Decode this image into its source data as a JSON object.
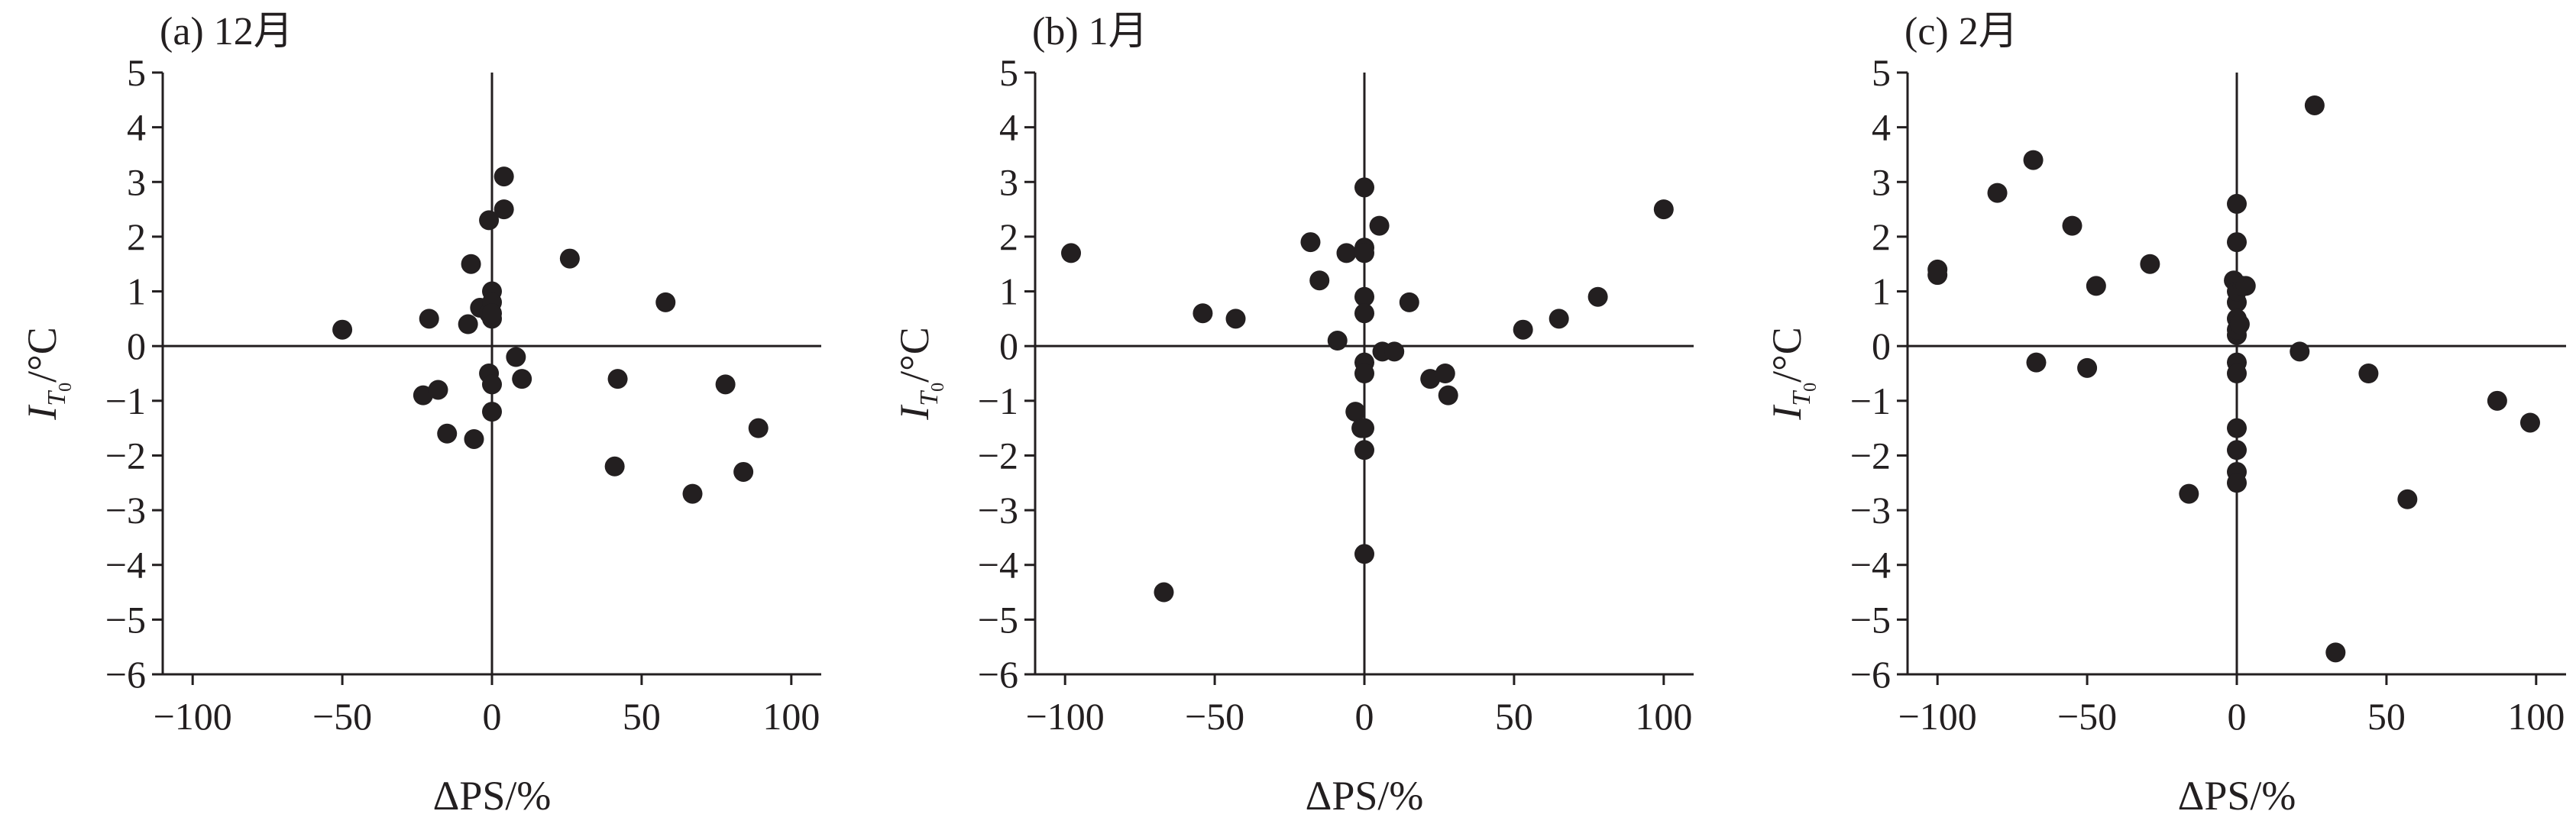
{
  "chart_data": [
    {
      "type": "scatter",
      "title": "(a) 12月",
      "xlabel": "ΔPS/%",
      "ylabel_main": "I",
      "ylabel_sub": "T",
      "ylabel_subsub": "0",
      "ylabel_unit": "/°C",
      "xlim": [
        -110,
        110
      ],
      "ylim": [
        -6,
        5
      ],
      "xticks": [
        "−100",
        "−50",
        "0",
        "50",
        "100"
      ],
      "yticks": [
        "5",
        "4",
        "3",
        "2",
        "1",
        "0",
        "−1",
        "−2",
        "−3",
        "−4",
        "−5",
        "−6"
      ],
      "x": [
        -50,
        -23,
        -21,
        -18,
        -15,
        -8,
        -7,
        -6,
        -4,
        -1,
        -1,
        0,
        0,
        0,
        0,
        0,
        4,
        4,
        8,
        10,
        26,
        41,
        42,
        58,
        78,
        84,
        67,
        89,
        -1,
        0
      ],
      "y": [
        0.3,
        -0.9,
        0.5,
        -0.8,
        -1.6,
        0.4,
        1.5,
        -1.7,
        0.7,
        -0.5,
        0.6,
        1.0,
        0.8,
        0.5,
        -0.7,
        -1.2,
        3.1,
        2.5,
        -0.2,
        -0.6,
        1.6,
        -2.2,
        -0.6,
        0.8,
        -0.7,
        -2.3,
        -2.7,
        -1.5,
        2.3,
        0.6
      ]
    },
    {
      "type": "scatter",
      "title": "(b) 1月",
      "xlabel": "ΔPS/%",
      "ylabel_main": "I",
      "ylabel_sub": "T",
      "ylabel_subsub": "0",
      "ylabel_unit": "/°C",
      "xlim": [
        -110,
        110
      ],
      "ylim": [
        -6,
        5
      ],
      "xticks": [
        "−100",
        "−50",
        "0",
        "50",
        "100"
      ],
      "yticks": [
        "5",
        "4",
        "3",
        "2",
        "1",
        "0",
        "−1",
        "−2",
        "−3",
        "−4",
        "−5",
        "−6"
      ],
      "x": [
        -98,
        -54,
        -43,
        -18,
        -15,
        -9,
        -6,
        -3,
        -1,
        0,
        0,
        0,
        0,
        0,
        0,
        0,
        0,
        0,
        0,
        5,
        6,
        10,
        15,
        22,
        27,
        28,
        53,
        65,
        78,
        100,
        -67
      ],
      "y": [
        1.7,
        0.6,
        0.5,
        1.9,
        1.2,
        0.1,
        1.7,
        -1.2,
        -1.5,
        2.9,
        1.8,
        1.7,
        0.9,
        0.6,
        -0.3,
        -0.5,
        -1.5,
        -1.9,
        -3.8,
        2.2,
        -0.1,
        -0.1,
        0.8,
        -0.6,
        -0.5,
        -0.9,
        0.3,
        0.5,
        0.9,
        2.5,
        -4.5
      ]
    },
    {
      "type": "scatter",
      "title": "(c) 2月",
      "xlabel": "ΔPS/%",
      "ylabel_main": "I",
      "ylabel_sub": "T",
      "ylabel_subsub": "0",
      "ylabel_unit": "/°C",
      "xlim": [
        -110,
        110
      ],
      "ylim": [
        -6,
        5
      ],
      "xticks": [
        "−100",
        "−50",
        "0",
        "50",
        "100"
      ],
      "yticks": [
        "5",
        "4",
        "3",
        "2",
        "1",
        "0",
        "−1",
        "−2",
        "−3",
        "−4",
        "−5",
        "−6"
      ],
      "x": [
        -100,
        -100,
        -80,
        -68,
        -67,
        -55,
        -50,
        -47,
        -29,
        -16,
        -1,
        0,
        0,
        0,
        0,
        0,
        0,
        0,
        0,
        0,
        0,
        0,
        0,
        0,
        1,
        2,
        3,
        21,
        26,
        33,
        44,
        57,
        87,
        98
      ],
      "y": [
        1.4,
        1.3,
        2.8,
        3.4,
        -0.3,
        2.2,
        -0.4,
        1.1,
        1.5,
        -2.7,
        1.2,
        2.6,
        1.9,
        0.8,
        0.2,
        -0.3,
        -0.5,
        -1.5,
        -1.9,
        -2.3,
        -2.5,
        1.0,
        0.5,
        0.3,
        0.4,
        1.1,
        1.1,
        -0.1,
        4.4,
        -5.6,
        -0.5,
        -2.8,
        -1.0,
        -1.4
      ]
    }
  ]
}
